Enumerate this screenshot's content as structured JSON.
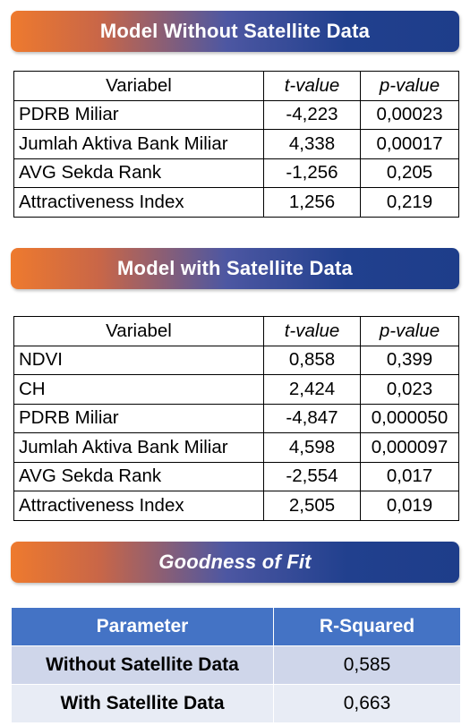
{
  "banner1": "Model Without Satellite Data",
  "banner2": "Model with Satellite Data",
  "banner3": "Goodness of Fit",
  "table1": {
    "headers": [
      "Variabel",
      "t-value",
      "p-value"
    ],
    "rows": [
      [
        "PDRB Miliar",
        "-4,223",
        "0,00023"
      ],
      [
        "Jumlah Aktiva Bank Miliar",
        "4,338",
        "0,00017"
      ],
      [
        "AVG Sekda Rank",
        "-1,256",
        "0,205"
      ],
      [
        "Attractiveness Index",
        "1,256",
        "0,219"
      ]
    ]
  },
  "table2": {
    "headers": [
      "Variabel",
      "t-value",
      "p-value"
    ],
    "rows": [
      [
        "NDVI",
        "0,858",
        "0,399"
      ],
      [
        "CH",
        "2,424",
        "0,023"
      ],
      [
        "PDRB Miliar",
        "-4,847",
        "0,000050"
      ],
      [
        "Jumlah Aktiva Bank Miliar",
        "4,598",
        "0,000097"
      ],
      [
        "AVG Sekda Rank",
        "-2,554",
        "0,017"
      ],
      [
        "Attractiveness Index",
        "2,505",
        "0,019"
      ]
    ]
  },
  "gof": {
    "headers": [
      "Parameter",
      "R-Squared"
    ],
    "rows": [
      [
        "Without Satellite Data",
        "0,585"
      ],
      [
        "With Satellite Data",
        "0,663"
      ]
    ]
  },
  "colors": {
    "banner_start": "#ee7a2e",
    "banner_end": "#1e3d8a",
    "table_header": "#4473c5",
    "row_dark": "#cfd6ea",
    "row_light": "#e8ecf5"
  }
}
